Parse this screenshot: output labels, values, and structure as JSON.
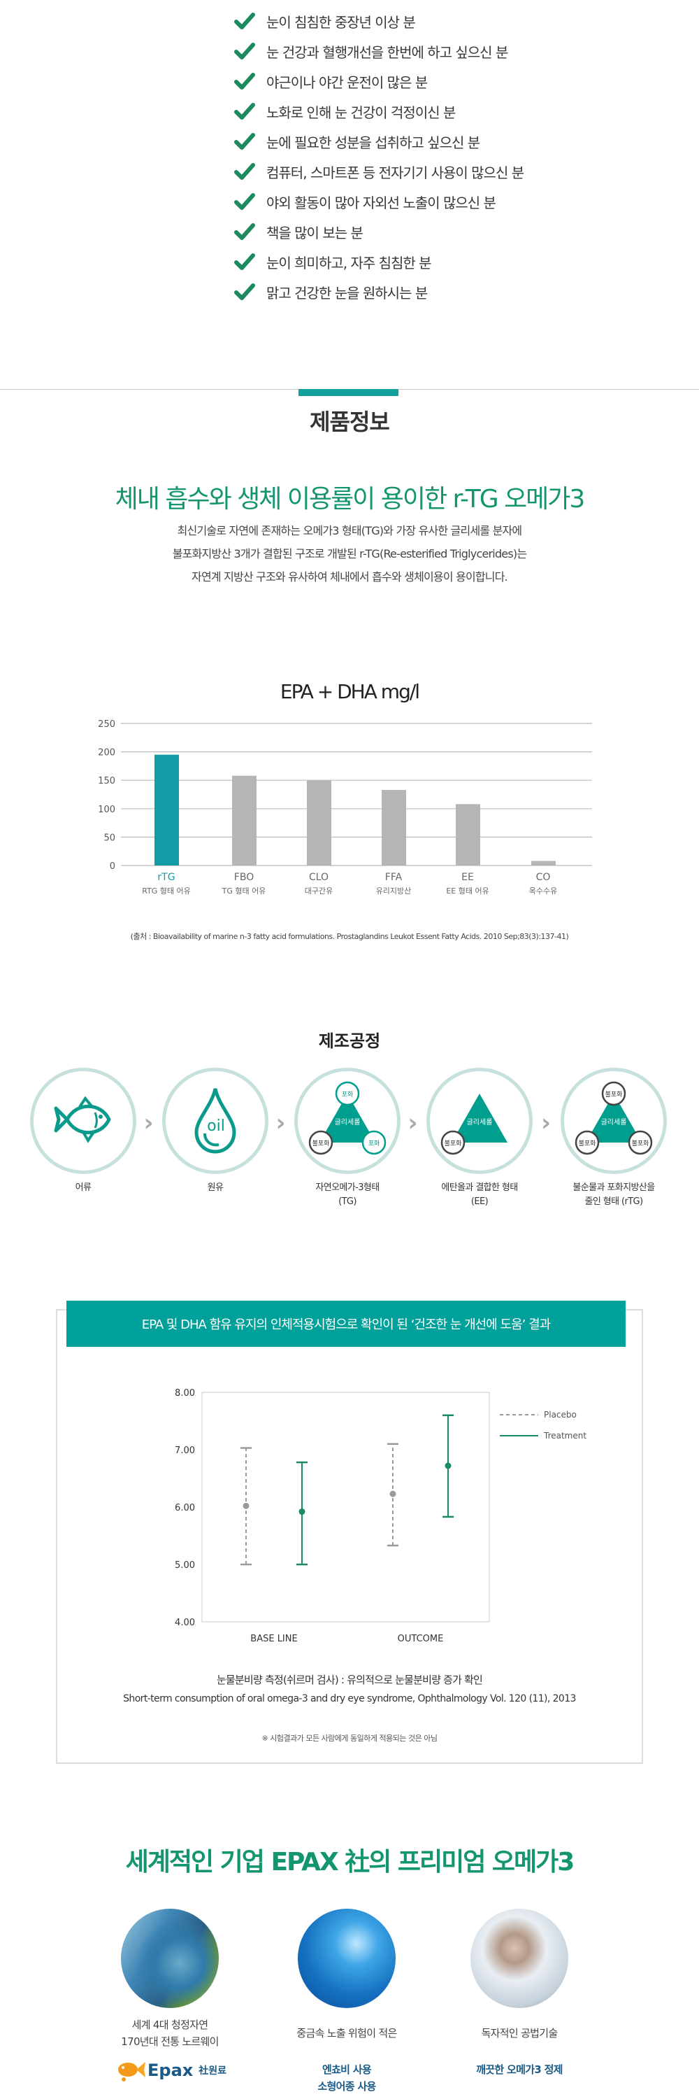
{
  "checklist": [
    "눈이 침침한 중장년 이상 분",
    "눈 건강과 혈행개선을 한번에 하고 싶으신 분",
    "야근이나 야간 운전이 많은 분",
    "노화로 인해 눈 건강이 걱정이신 분",
    "눈에 필요한 성분을 섭취하고 싶으신 분",
    "컴퓨터, 스마트폰 등 전자기기 사용이 많으신 분",
    "야외 활동이 많아 자외선 노출이 많으신 분",
    "책을 많이 보는 분",
    "눈이 희미하고, 자주 침침한 분",
    "맑고 건강한 눈을 원하시는 분"
  ],
  "product_info": {
    "section_title": "제품정보",
    "headline": "체내 흡수와 생체 이용률이 용이한 r-TG 오메가3",
    "paragraph": [
      "최신기술로 자연에 존재하는 오메가3 형태(TG)와 가장 유사한 글리세롤 분자에",
      "불포화지방산 3개가 결합된 구조로 개발된 r-TG(Re-esterified Triglycerides)는",
      "자연계 지방산 구조와 유사하여 체내에서 흡수와 생체이용이 용이합니다."
    ]
  },
  "colors": {
    "accent": "#00a19a",
    "headline_green": "#13956f",
    "bar_highlight": "#149ca6",
    "bar_grey": "#b5b5b5",
    "treatment": "#1a8a62",
    "placebo": "#9a9a9a"
  },
  "chart_data": [
    {
      "type": "bar",
      "title": "EPA + DHA mg/l",
      "categories": [
        "rTG",
        "FBO",
        "CLO",
        "FFA",
        "EE",
        "CO"
      ],
      "category_sublabels": [
        "RTG 형태 어유",
        "TG 형태 어유",
        "대구간유",
        "유리지방산",
        "EE 형태 어유",
        "옥수수유"
      ],
      "values": [
        195,
        158,
        150,
        133,
        108,
        8
      ],
      "highlight": "rTG",
      "ylim": [
        0,
        250
      ],
      "yticks": [
        0,
        50,
        100,
        150,
        200,
        250
      ],
      "grid": true,
      "source": "(출처 : Bioavailability of marine n-3 fatty acid formulations. Prostaglandins Leukot Essent Fatty Acids. 2010 Sep;83(3):137-41)"
    },
    {
      "type": "scatter",
      "categories": [
        "BASE LINE",
        "OUTCOME"
      ],
      "ylim": [
        4.0,
        8.0
      ],
      "yticks": [
        "4.00",
        "5.00",
        "6.00",
        "7.00",
        "8.00"
      ],
      "legend_position": "right",
      "series": [
        {
          "name": "Placebo",
          "style": "dashed",
          "mean": [
            6.02,
            6.23
          ],
          "low": [
            5.0,
            5.33
          ],
          "high": [
            7.03,
            7.1
          ]
        },
        {
          "name": "Treatment",
          "style": "solid",
          "mean": [
            5.92,
            6.72
          ],
          "low": [
            5.0,
            5.83
          ],
          "high": [
            6.78,
            7.6
          ]
        }
      ]
    }
  ],
  "process": {
    "title": "제조공정",
    "oil_text": "oil",
    "mol": {
      "saturated": "포화",
      "unsaturated": "불포화",
      "glycerol": "글리세롤"
    },
    "steps": [
      {
        "label1": "어류",
        "label2": ""
      },
      {
        "label1": "원유",
        "label2": ""
      },
      {
        "label1": "자연오메가-3형태",
        "label2": "(TG)"
      },
      {
        "label1": "에탄올과 결합한 형태",
        "label2": "(EE)"
      },
      {
        "label1": "불순물과 포화지방산을",
        "label2": "줄인 형태 (rTG)"
      }
    ]
  },
  "clinical": {
    "banner": "EPA 및 DHA 함유 유지의 인체적용시험으로 확인이 된 ‘건조한 눈 개선에 도움’ 결과",
    "caption1": "눈물분비량 측정(쉬르머 검사) : 유의적으로 눈물분비량 증가 확인",
    "caption2": "Short-term consumption of oral omega-3 and dry eye syndrome, Ophthalmology Vol. 120 (11), 2013",
    "note": "※ 시험결과가 모든 사람에게 동일하게 적용되는 것은 아님"
  },
  "epax": {
    "headline": "세계적인 기업 EPAX 社의 프리미엄 오메가3",
    "logo_text": "Epax",
    "logo_suffix": "社원료",
    "items": [
      {
        "text1": "세계 4대 청정자연",
        "text2": "170년대 전통 노르웨이",
        "bold1": "",
        "bold2": ""
      },
      {
        "text1": "중금속 노출 위험이 적은",
        "text2": "",
        "bold1": "엔쵸비 사용",
        "bold2": "소형어종 사용"
      },
      {
        "text1": "독자적인 공법기술",
        "text2": "",
        "bold1": "깨끗한 오메가3 정제",
        "bold2": ""
      }
    ]
  }
}
